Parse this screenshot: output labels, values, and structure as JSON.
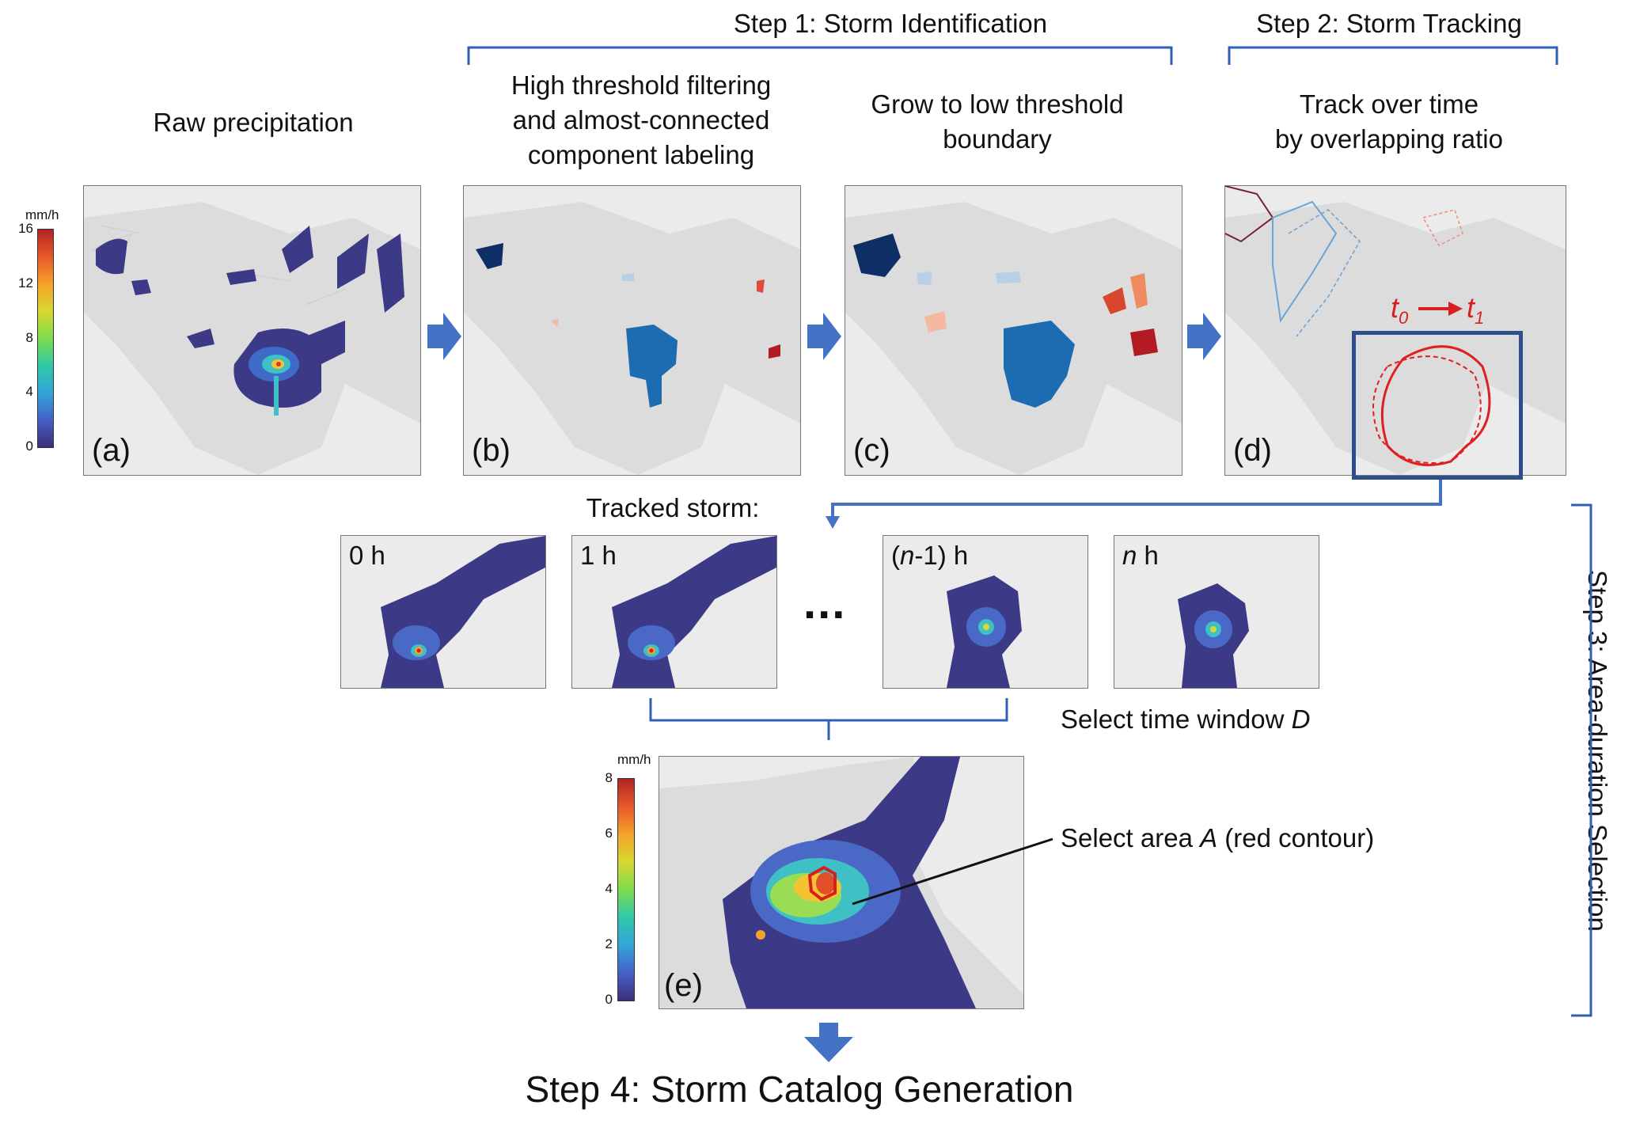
{
  "steps": {
    "step1": "Step 1: Storm Identification",
    "step2": "Step 2: Storm Tracking",
    "step3": "Step 3: Area-duration Selection",
    "step4": "Step 4: Storm Catalog Generation"
  },
  "panels": {
    "a": {
      "title": "Raw precipitation",
      "label": "(a)"
    },
    "b": {
      "title_l1": "High threshold filtering",
      "title_l2": "and almost-connected",
      "title_l3": "component labeling",
      "label": "(b)"
    },
    "c": {
      "title_l1": "Grow to low threshold",
      "title_l2": "boundary",
      "label": "(c)"
    },
    "d": {
      "title_l1": "Track over time",
      "title_l2": "by overlapping ratio",
      "label": "(d)",
      "t0": "t",
      "t0_sub": "0",
      "t1": "t",
      "t1_sub": "1"
    },
    "e": {
      "label": "(e)"
    }
  },
  "tracked": {
    "heading": "Tracked storm:",
    "frames": [
      {
        "label": "0 h"
      },
      {
        "label": "1 h"
      },
      {
        "label_pre": "(",
        "label_n": "n",
        "label_post": "-1) h"
      },
      {
        "label_n": "n",
        "label_post": " h"
      }
    ],
    "ellipsis": "...",
    "select_time_pre": "Select time window ",
    "select_time_var": "D",
    "select_area_pre": "Select area ",
    "select_area_var": "A",
    "select_area_post": " (red contour)"
  },
  "colorbar_top": {
    "unit": "mm/h",
    "ticks": [
      "16",
      "12",
      "8",
      "4",
      "0"
    ]
  },
  "colorbar_bottom": {
    "unit": "mm/h",
    "ticks": [
      "8",
      "6",
      "4",
      "2",
      "0"
    ]
  },
  "colors": {
    "arrow": "#4472c4",
    "bracket": "#2f5fb3",
    "track": "#e02020",
    "box": "#2d4d8c"
  }
}
